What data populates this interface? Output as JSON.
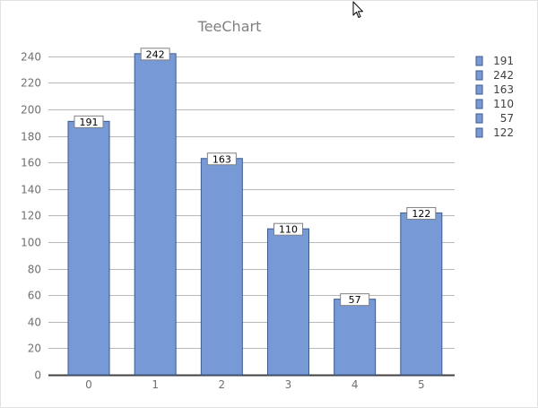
{
  "chart_data": {
    "type": "bar",
    "title": "TeeChart",
    "categories": [
      "0",
      "1",
      "2",
      "3",
      "4",
      "5"
    ],
    "values": [
      191,
      242,
      163,
      110,
      57,
      122
    ],
    "data_labels": [
      "191",
      "242",
      "163",
      "110",
      "57",
      "122"
    ],
    "legend": {
      "placement": "right",
      "entries": [
        "191",
        "242",
        "163",
        "110",
        "57",
        "122"
      ]
    },
    "ylim": [
      0,
      250
    ],
    "yticks": [
      0,
      20,
      40,
      60,
      80,
      100,
      120,
      140,
      160,
      180,
      200,
      220,
      240
    ],
    "ytick_labels": [
      "0",
      "20",
      "40",
      "60",
      "80",
      "100",
      "120",
      "140",
      "160",
      "180",
      "200",
      "220",
      "240"
    ],
    "grid": true,
    "xlabel": "",
    "ylabel": ""
  },
  "colors": {
    "bar_fill": "#7799d5",
    "bar_stroke": "#3c5a8c",
    "grid": "#b8b8b8",
    "axis": "#404040",
    "title": "#808080"
  },
  "cursor_icon": "mouse-pointer-icon"
}
